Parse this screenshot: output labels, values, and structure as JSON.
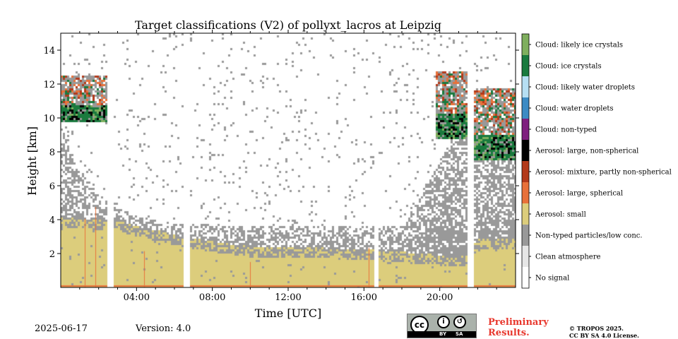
{
  "chart_data": {
    "type": "heatmap",
    "title": "Target classifications (V2) of pollyxt_lacros at Leipzig",
    "xlabel": "Time [UTC]",
    "ylabel": "Height [km]",
    "xlim_hours": [
      0,
      24
    ],
    "ylim_km": [
      0,
      15
    ],
    "x_ticks": [
      {
        "value": 4,
        "label": "04:00"
      },
      {
        "value": 8,
        "label": "08:00"
      },
      {
        "value": 12,
        "label": "12:00"
      },
      {
        "value": 16,
        "label": "16:00"
      },
      {
        "value": 20,
        "label": "20:00"
      }
    ],
    "y_ticks": [
      {
        "value": 2,
        "label": "2"
      },
      {
        "value": 4,
        "label": "4"
      },
      {
        "value": 6,
        "label": "6"
      },
      {
        "value": 8,
        "label": "8"
      },
      {
        "value": 10,
        "label": "10"
      },
      {
        "value": 12,
        "label": "12"
      },
      {
        "value": 14,
        "label": "14"
      }
    ],
    "classes": [
      {
        "label": "No signal",
        "color": "#ffffff"
      },
      {
        "label": "Clean atmosphere",
        "color": "#e6e6e6"
      },
      {
        "label": "Non-typed particles/low conc.",
        "color": "#999999"
      },
      {
        "label": "Aerosol: small",
        "color": "#dccd7c"
      },
      {
        "label": "Aerosol: large, spherical",
        "color": "#e8713a"
      },
      {
        "label": "Aerosol: mixture, partly non-spherical",
        "color": "#b33a1b"
      },
      {
        "label": "Aerosol: large, non-spherical",
        "color": "#000000"
      },
      {
        "label": "Cloud: non-typed",
        "color": "#7f1f7f"
      },
      {
        "label": "Cloud: water droplets",
        "color": "#3c8bc4"
      },
      {
        "label": "Cloud: likely water droplets",
        "color": "#b6dff3"
      },
      {
        "label": "Cloud: ice crystals",
        "color": "#1a7a3e"
      },
      {
        "label": "Cloud: likely ice crystals",
        "color": "#7faf5e"
      }
    ],
    "data_gaps_hours": [
      [
        2.5,
        2.8
      ],
      [
        6.5,
        6.8
      ],
      [
        16.5,
        16.8
      ],
      [
        21.5,
        21.8
      ]
    ],
    "aerosol_layer_top_km": [
      {
        "x": 0,
        "y": 3.5
      },
      {
        "x": 2.5,
        "y": 3.4
      },
      {
        "x": 3,
        "y": 3.3
      },
      {
        "x": 6,
        "y": 2.5
      },
      {
        "x": 8,
        "y": 2.1
      },
      {
        "x": 10,
        "y": 1.8
      },
      {
        "x": 12,
        "y": 1.8
      },
      {
        "x": 16.5,
        "y": 1.6
      },
      {
        "x": 17,
        "y": 1.6
      },
      {
        "x": 20,
        "y": 1.3
      },
      {
        "x": 21.5,
        "y": 1.3
      },
      {
        "x": 22,
        "y": 2.3
      },
      {
        "x": 24,
        "y": 2.3
      }
    ],
    "cloud_layers": [
      {
        "start": 0,
        "end": 2.5,
        "bottom_km": 9.8,
        "top_km": 12.5,
        "type": "ice crystals / aerosol"
      },
      {
        "start": 19.8,
        "end": 21.5,
        "bottom_km": 8.8,
        "top_km": 12.8,
        "type": "ice crystals / aerosol"
      },
      {
        "start": 21.8,
        "end": 24,
        "bottom_km": 7.5,
        "top_km": 11.8,
        "type": "ice crystals"
      }
    ]
  },
  "footer": {
    "date": "2025-06-17",
    "version": "Version: 4.0",
    "preliminary_line1": "Preliminary",
    "preliminary_line2": "Results.",
    "copyright_line1": "© TROPOS 2025.",
    "copyright_line2": "CC BY SA 4.0 License."
  },
  "license_badge": {
    "cc": "cc",
    "by": "BY",
    "sa": "SA"
  }
}
